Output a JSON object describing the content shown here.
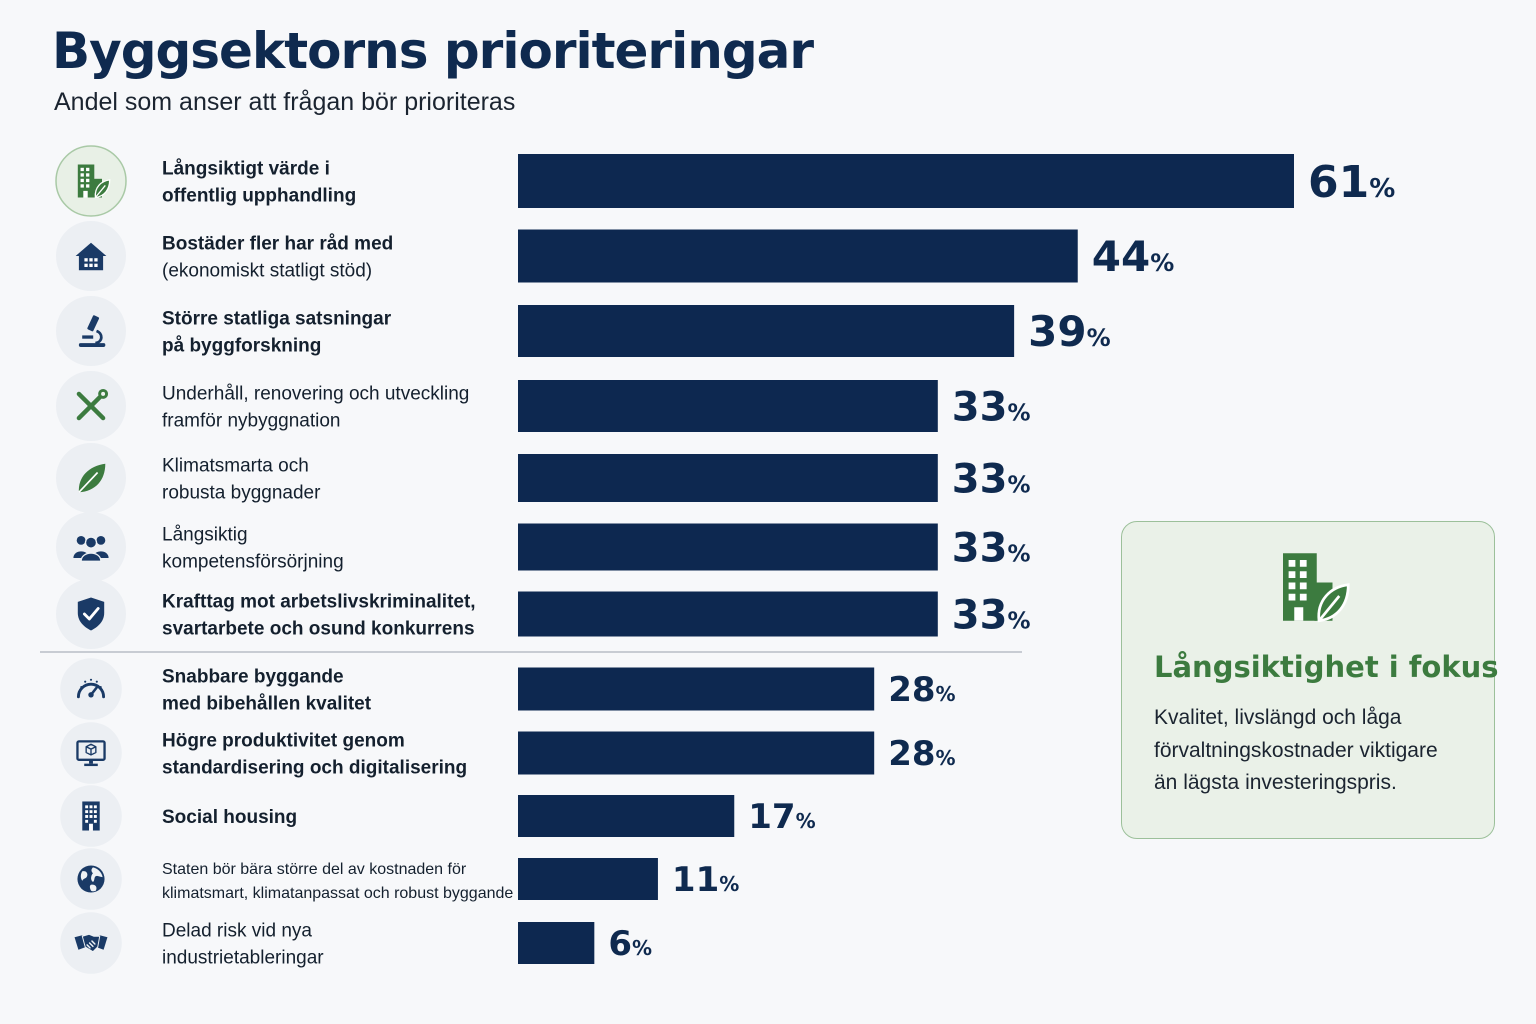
{
  "title": "Byggsektorns prioriteringar",
  "subtitle": "Andel som anser att frågan bör prioriteras",
  "colors": {
    "bar": "#0d2850",
    "accent_green": "#3c7b3f",
    "icon_navy": "#1a3a66",
    "callout_bg": "#eaf1e8",
    "callout_border": "#9cc09a"
  },
  "chart_data": {
    "type": "bar",
    "orientation": "horizontal",
    "unit": "%",
    "xlim": [
      0,
      61
    ],
    "categories": [
      [
        "Långsiktigt värde i",
        "offentlig upphandling"
      ],
      [
        "Bostäder fler har råd med",
        "(ekonomiskt statligt stöd)"
      ],
      [
        "Större statliga satsningar",
        "på byggforskning"
      ],
      [
        "Underhåll, renovering och utveckling",
        "framför nybyggnation"
      ],
      [
        "Klimatsmarta och",
        "robusta byggnader"
      ],
      [
        "Långsiktig",
        "kompetensförsörjning"
      ],
      [
        "Krafttag mot arbetslivskriminalitet,",
        "svartarbete och osund konkurrens"
      ],
      [
        "Snabbare byggande",
        "med bibehållen kvalitet"
      ],
      [
        "Högre produktivitet genom",
        "standardisering och digitalisering"
      ],
      [
        "Social housing"
      ],
      [
        "Staten bör bära större del av kostnaden för",
        "klimatsmart, klimatanpassat och robust byggande"
      ],
      [
        "Delad risk vid nya",
        "industrietableringar"
      ]
    ],
    "values": [
      61,
      44,
      39,
      33,
      33,
      33,
      33,
      28,
      28,
      17,
      11,
      6
    ],
    "icons": [
      "building-leaf-icon",
      "house-icon",
      "microscope-icon",
      "tools-icon",
      "leaf-icon",
      "people-icon",
      "shield-check-icon",
      "speedometer-icon",
      "monitor-cube-icon",
      "apartment-building-icon",
      "globe-icon",
      "handshake-icon"
    ]
  },
  "callout": {
    "icon": "building-leaf-icon",
    "title": "Långsiktighet i fokus",
    "body_lines": [
      "Kvalitet, livslängd och låga",
      "förvaltningskostnader viktigare",
      "än lägsta investeringspris."
    ]
  }
}
